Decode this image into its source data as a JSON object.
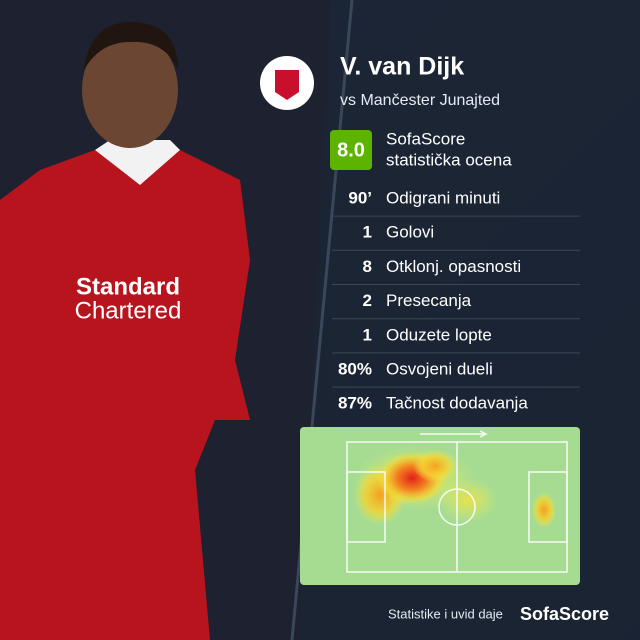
{
  "player": {
    "name": "V. van Dijk",
    "opponent": "vs Mančester Junajted"
  },
  "rating": {
    "value": "8.0",
    "label_lines": [
      "SofaScore",
      "statistička ocena"
    ]
  },
  "stats": [
    {
      "value": "90’",
      "label": "Odigrani minuti"
    },
    {
      "value": "1",
      "label": "Golovi"
    },
    {
      "value": "8",
      "label": "Otklonj. opasnosti"
    },
    {
      "value": "2",
      "label": "Presecanja"
    },
    {
      "value": "1",
      "label": "Oduzete lopte"
    },
    {
      "value": "80%",
      "label": "Osvojeni dueli"
    },
    {
      "value": "87%",
      "label": "Tačnost dodavanja"
    }
  ],
  "footer": {
    "text": "Statistike i uvid daje",
    "brand": "SofaScore"
  }
}
